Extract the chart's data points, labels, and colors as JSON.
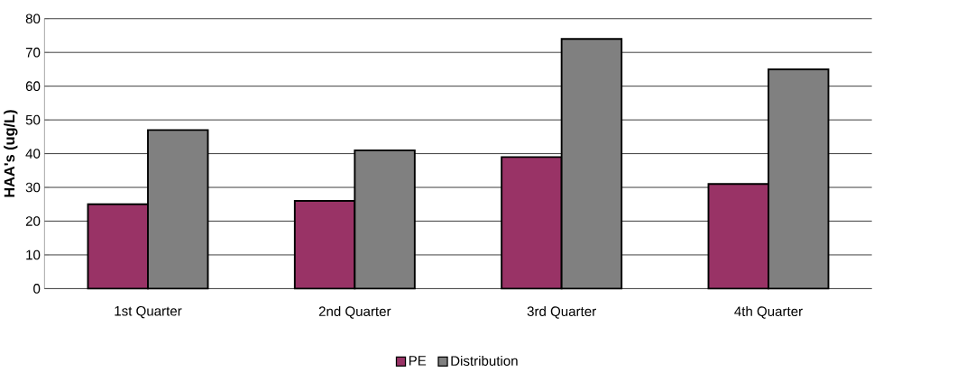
{
  "chart_data": {
    "type": "bar",
    "ylabel": "HAA's (ug/L)",
    "categories": [
      "1st Quarter",
      "2nd Quarter",
      "3rd Quarter",
      "4th Quarter"
    ],
    "series": [
      {
        "name": "PE",
        "color": "#993366",
        "values": [
          25,
          26,
          39,
          31
        ]
      },
      {
        "name": "Distribution",
        "color": "#808080",
        "values": [
          47,
          41,
          74,
          65
        ]
      }
    ],
    "ylim": [
      0,
      80
    ],
    "yticks": [
      0,
      10,
      20,
      30,
      40,
      50,
      60,
      70,
      80
    ],
    "grid": "y",
    "legend": "bottom"
  }
}
